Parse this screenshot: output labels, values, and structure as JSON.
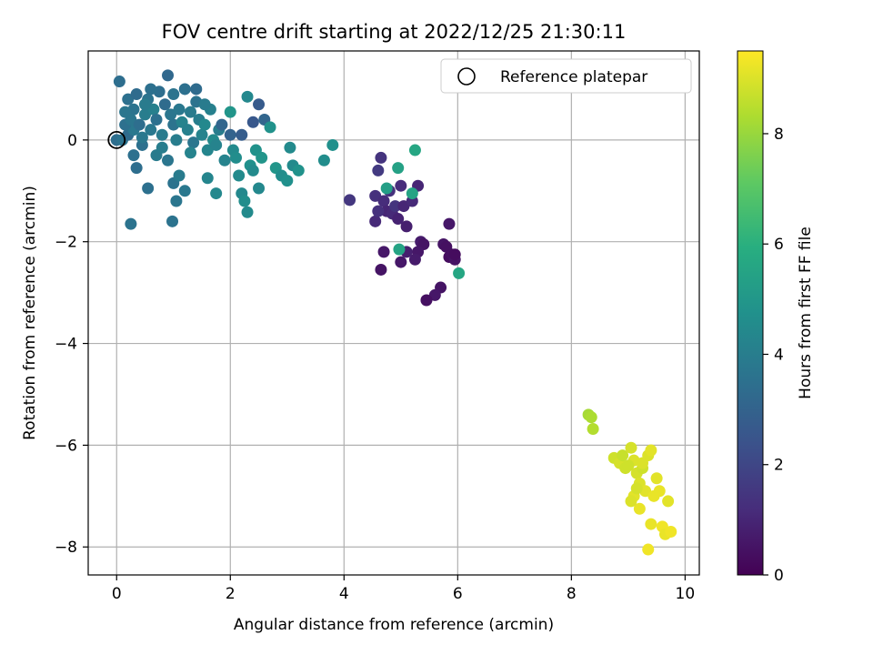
{
  "chart_data": {
    "type": "scatter",
    "title": "FOV centre drift starting at 2022/12/25 21:30:11",
    "xlabel": "Angular distance from reference (arcmin)",
    "ylabel": "Rotation from reference (arcmin)",
    "xlim": [
      -0.5,
      10.25
    ],
    "ylim": [
      -8.55,
      1.75
    ],
    "x_ticks": [
      0,
      2,
      4,
      6,
      8,
      10
    ],
    "y_ticks": [
      -8,
      -6,
      -4,
      -2,
      0
    ],
    "grid": true,
    "legend": {
      "placement": "top-right",
      "entries": [
        "Reference platepar"
      ]
    },
    "reference_point": {
      "x": 0,
      "y": 0
    },
    "colorbar": {
      "label": "Hours from first FF file",
      "colormap": "viridis",
      "range": [
        0,
        9.5
      ],
      "ticks": [
        0,
        2,
        4,
        6,
        8
      ]
    },
    "points": [
      [
        0.0,
        0.0,
        3.4
      ],
      [
        0.1,
        0.0,
        3.6
      ],
      [
        0.2,
        0.1,
        3.3
      ],
      [
        0.3,
        0.2,
        3.8
      ],
      [
        0.15,
        0.3,
        3.5
      ],
      [
        0.05,
        1.15,
        3.4
      ],
      [
        0.2,
        0.8,
        3.5
      ],
      [
        0.3,
        0.6,
        3.6
      ],
      [
        0.35,
        0.9,
        3.3
      ],
      [
        0.25,
        0.4,
        3.7
      ],
      [
        0.4,
        0.3,
        3.4
      ],
      [
        0.45,
        -0.1,
        3.5
      ],
      [
        0.5,
        0.5,
        4.0
      ],
      [
        0.55,
        0.8,
        3.6
      ],
      [
        0.6,
        0.2,
        3.8
      ],
      [
        0.65,
        0.6,
        4.1
      ],
      [
        0.7,
        0.4,
        3.5
      ],
      [
        0.75,
        0.95,
        3.4
      ],
      [
        0.8,
        0.1,
        3.9
      ],
      [
        0.85,
        0.7,
        3.3
      ],
      [
        0.9,
        1.27,
        3.2
      ],
      [
        0.95,
        0.5,
        3.7
      ],
      [
        1.0,
        0.3,
        3.6
      ],
      [
        1.05,
        0.0,
        4.0
      ],
      [
        1.1,
        0.6,
        3.8
      ],
      [
        1.15,
        0.35,
        4.2
      ],
      [
        1.2,
        1.0,
        3.5
      ],
      [
        1.25,
        0.2,
        4.1
      ],
      [
        1.3,
        0.55,
        3.9
      ],
      [
        1.35,
        -0.05,
        3.7
      ],
      [
        1.4,
        0.75,
        3.6
      ],
      [
        1.45,
        0.4,
        4.0
      ],
      [
        1.5,
        0.1,
        4.2
      ],
      [
        1.55,
        0.3,
        4.4
      ],
      [
        1.6,
        -0.2,
        4.3
      ],
      [
        1.65,
        0.6,
        4.1
      ],
      [
        1.7,
        0.0,
        4.5
      ],
      [
        1.75,
        -0.1,
        4.2
      ],
      [
        1.8,
        0.2,
        4.0
      ],
      [
        1.85,
        0.3,
        3.1
      ],
      [
        1.4,
        1.0,
        3.3
      ],
      [
        1.0,
        0.9,
        3.6
      ],
      [
        0.6,
        1.0,
        3.5
      ],
      [
        0.5,
        0.7,
        3.9
      ],
      [
        0.3,
        -0.3,
        3.5
      ],
      [
        0.35,
        -0.55,
        3.4
      ],
      [
        0.55,
        -0.95,
        3.5
      ],
      [
        0.25,
        -1.65,
        3.6
      ],
      [
        0.7,
        -0.3,
        3.9
      ],
      [
        0.9,
        -0.4,
        3.7
      ],
      [
        1.0,
        -0.85,
        3.6
      ],
      [
        1.1,
        -0.7,
        3.9
      ],
      [
        1.2,
        -1.0,
        3.8
      ],
      [
        1.05,
        -1.2,
        3.7
      ],
      [
        0.98,
        -1.6,
        3.6
      ],
      [
        1.6,
        -0.75,
        4.3
      ],
      [
        1.75,
        -1.05,
        4.4
      ],
      [
        1.9,
        -0.4,
        4.2
      ],
      [
        2.0,
        0.1,
        3.0
      ],
      [
        2.05,
        -0.2,
        4.5
      ],
      [
        2.1,
        -0.35,
        4.6
      ],
      [
        2.15,
        -0.7,
        4.5
      ],
      [
        2.2,
        -1.05,
        4.4
      ],
      [
        2.25,
        -1.2,
        4.6
      ],
      [
        2.3,
        -1.42,
        4.5
      ],
      [
        2.35,
        -0.5,
        4.7
      ],
      [
        2.4,
        -0.6,
        4.5
      ],
      [
        2.45,
        -0.2,
        4.8
      ],
      [
        2.5,
        -0.95,
        4.4
      ],
      [
        2.55,
        -0.35,
        4.9
      ],
      [
        2.3,
        0.85,
        4.4
      ],
      [
        2.5,
        0.7,
        2.7
      ],
      [
        2.6,
        0.4,
        3.1
      ],
      [
        2.7,
        0.25,
        4.8
      ],
      [
        2.8,
        -0.55,
        4.9
      ],
      [
        2.9,
        -0.7,
        4.6
      ],
      [
        3.0,
        -0.8,
        4.7
      ],
      [
        3.1,
        -0.5,
        4.5
      ],
      [
        3.2,
        -0.6,
        4.8
      ],
      [
        3.05,
        -0.15,
        4.5
      ],
      [
        3.65,
        -0.4,
        4.6
      ],
      [
        3.8,
        -0.1,
        4.7
      ],
      [
        2.2,
        0.1,
        2.8
      ],
      [
        2.4,
        0.35,
        2.6
      ],
      [
        2.0,
        0.55,
        4.9
      ],
      [
        1.55,
        0.7,
        3.9
      ],
      [
        1.3,
        -0.25,
        4.2
      ],
      [
        0.8,
        -0.15,
        4.0
      ],
      [
        0.45,
        0.05,
        3.8
      ],
      [
        0.15,
        0.55,
        3.7
      ],
      [
        4.1,
        -1.18,
        1.5
      ],
      [
        4.55,
        -1.1,
        1.3
      ],
      [
        4.6,
        -0.6,
        1.6
      ],
      [
        4.65,
        -0.35,
        1.4
      ],
      [
        4.7,
        -1.2,
        1.2
      ],
      [
        4.75,
        -1.4,
        1.0
      ],
      [
        4.8,
        -1.0,
        1.3
      ],
      [
        4.85,
        -1.45,
        1.1
      ],
      [
        4.9,
        -1.3,
        1.4
      ],
      [
        4.95,
        -1.55,
        0.9
      ],
      [
        5.0,
        -0.9,
        1.2
      ],
      [
        5.05,
        -1.3,
        1.0
      ],
      [
        5.1,
        -1.7,
        0.8
      ],
      [
        5.2,
        -1.2,
        1.1
      ],
      [
        5.3,
        -0.9,
        1.0
      ],
      [
        5.35,
        -2.0,
        0.7
      ],
      [
        5.4,
        -2.05,
        0.5
      ],
      [
        5.3,
        -2.2,
        0.6
      ],
      [
        5.25,
        -2.35,
        0.7
      ],
      [
        5.1,
        -2.2,
        0.8
      ],
      [
        5.0,
        -2.4,
        0.6
      ],
      [
        4.65,
        -2.55,
        0.5
      ],
      [
        4.7,
        -2.2,
        0.6
      ],
      [
        4.55,
        -1.6,
        1.1
      ],
      [
        4.6,
        -1.4,
        1.3
      ],
      [
        5.75,
        -2.05,
        0.5
      ],
      [
        5.8,
        -2.1,
        0.4
      ],
      [
        5.85,
        -2.3,
        0.3
      ],
      [
        5.9,
        -2.25,
        0.4
      ],
      [
        5.95,
        -2.35,
        0.5
      ],
      [
        5.85,
        -1.65,
        0.6
      ],
      [
        5.7,
        -2.9,
        0.5
      ],
      [
        5.6,
        -3.05,
        0.6
      ],
      [
        5.45,
        -3.15,
        0.4
      ],
      [
        5.95,
        -2.25,
        0.3
      ],
      [
        4.75,
        -0.95,
        5.3
      ],
      [
        4.95,
        -0.55,
        5.4
      ],
      [
        5.2,
        -1.05,
        5.5
      ],
      [
        5.25,
        -0.2,
        5.6
      ],
      [
        4.97,
        -2.15,
        5.5
      ],
      [
        6.02,
        -2.62,
        5.6
      ],
      [
        8.3,
        -5.4,
        8.2
      ],
      [
        8.35,
        -5.45,
        8.3
      ],
      [
        8.38,
        -5.68,
        8.4
      ],
      [
        8.75,
        -6.25,
        8.8
      ],
      [
        8.85,
        -6.35,
        8.9
      ],
      [
        8.9,
        -6.2,
        8.7
      ],
      [
        8.95,
        -6.45,
        8.8
      ],
      [
        9.05,
        -6.05,
        8.9
      ],
      [
        9.1,
        -6.3,
        9.0
      ],
      [
        9.15,
        -6.55,
        8.9
      ],
      [
        9.2,
        -6.75,
        9.0
      ],
      [
        9.25,
        -6.45,
        8.8
      ],
      [
        9.3,
        -6.9,
        9.1
      ],
      [
        9.35,
        -6.2,
        9.0
      ],
      [
        9.4,
        -6.1,
        9.1
      ],
      [
        9.45,
        -7.0,
        9.2
      ],
      [
        9.5,
        -6.65,
        9.1
      ],
      [
        9.55,
        -6.9,
        9.2
      ],
      [
        9.6,
        -7.6,
        9.3
      ],
      [
        9.65,
        -7.75,
        9.2
      ],
      [
        9.7,
        -7.1,
        9.1
      ],
      [
        9.75,
        -7.7,
        9.3
      ],
      [
        9.2,
        -7.25,
        9.2
      ],
      [
        9.1,
        -7.0,
        9.1
      ],
      [
        9.05,
        -7.1,
        9.0
      ],
      [
        9.15,
        -6.85,
        8.9
      ],
      [
        9.25,
        -6.35,
        9.0
      ],
      [
        9.35,
        -8.05,
        9.3
      ],
      [
        9.4,
        -7.55,
        9.2
      ],
      [
        9.0,
        -6.4,
        8.8
      ]
    ]
  }
}
